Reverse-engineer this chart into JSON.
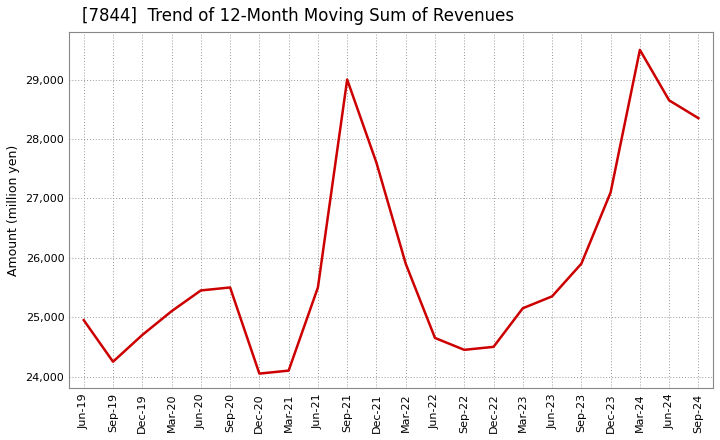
{
  "title": "[7844]  Trend of 12-Month Moving Sum of Revenues",
  "ylabel": "Amount (million yen)",
  "line_color": "#cc0000",
  "line_width": 1.8,
  "background_color": "#ffffff",
  "grid_color": "#999999",
  "ylim": [
    23800,
    29800
  ],
  "yticks": [
    24000,
    25000,
    26000,
    27000,
    28000,
    29000
  ],
  "labels": [
    "Jun-19",
    "Sep-19",
    "Dec-19",
    "Mar-20",
    "Jun-20",
    "Sep-20",
    "Dec-20",
    "Mar-21",
    "Jun-21",
    "Sep-21",
    "Dec-21",
    "Mar-22",
    "Jun-22",
    "Sep-22",
    "Dec-22",
    "Mar-23",
    "Jun-23",
    "Sep-23",
    "Dec-23",
    "Mar-24",
    "Jun-24",
    "Sep-24"
  ],
  "values": [
    24950,
    24250,
    24700,
    25100,
    25450,
    25500,
    24050,
    24100,
    25500,
    29000,
    27600,
    25900,
    24650,
    24450,
    24500,
    25150,
    25350,
    25900,
    27100,
    29500,
    28650,
    28350
  ],
  "title_fontsize": 12,
  "tick_fontsize": 8,
  "ylabel_fontsize": 9
}
